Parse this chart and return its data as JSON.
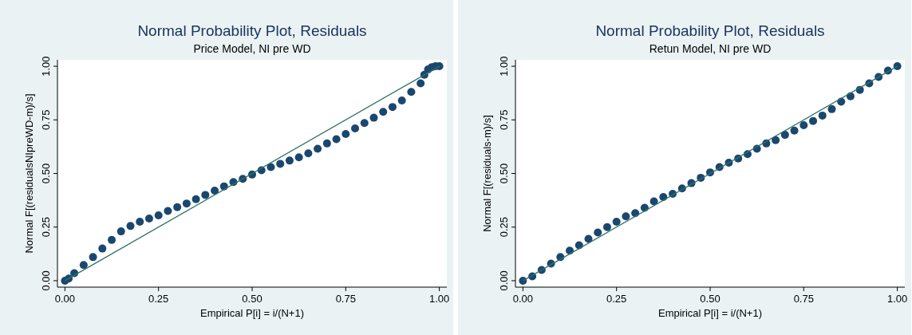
{
  "chart_data": [
    {
      "type": "scatter",
      "title": "Normal Probability Plot, Residuals",
      "subtitle": "Price Model, NI pre WD",
      "xlabel": "Empirical P[i] = i/(N+1)",
      "ylabel": "Normal F[(residualsNIpreWD-m)/s]",
      "xlim": [
        -0.02,
        1.02
      ],
      "ylim": [
        -0.03,
        1.03
      ],
      "xticks": [
        {
          "value": 0,
          "label": "0.00"
        },
        {
          "value": 0.25,
          "label": "0.25"
        },
        {
          "value": 0.5,
          "label": "0.50"
        },
        {
          "value": 0.75,
          "label": "0.75"
        },
        {
          "value": 1,
          "label": "1.00"
        }
      ],
      "yticks": [
        {
          "value": 0,
          "label": "0.00"
        },
        {
          "value": 0.25,
          "label": "0.25"
        },
        {
          "value": 0.5,
          "label": "0.50"
        },
        {
          "value": 0.75,
          "label": "0.75"
        },
        {
          "value": 1,
          "label": "1.00"
        }
      ],
      "grid": false,
      "series": [
        {
          "marker": "circle",
          "color": "#1a476f",
          "x": [
            0,
            0.01,
            0.025,
            0.05,
            0.075,
            0.1,
            0.125,
            0.15,
            0.175,
            0.2,
            0.225,
            0.25,
            0.275,
            0.3,
            0.325,
            0.35,
            0.375,
            0.4,
            0.425,
            0.45,
            0.475,
            0.5,
            0.525,
            0.55,
            0.575,
            0.6,
            0.625,
            0.65,
            0.675,
            0.7,
            0.725,
            0.75,
            0.775,
            0.8,
            0.825,
            0.85,
            0.875,
            0.9,
            0.925,
            0.95,
            0.96,
            0.97,
            0.98,
            0.99,
            1
          ],
          "values": [
            0,
            0.01,
            0.035,
            0.073,
            0.11,
            0.15,
            0.19,
            0.23,
            0.255,
            0.275,
            0.29,
            0.305,
            0.325,
            0.343,
            0.36,
            0.38,
            0.4,
            0.42,
            0.44,
            0.46,
            0.475,
            0.495,
            0.515,
            0.53,
            0.545,
            0.56,
            0.575,
            0.594,
            0.615,
            0.64,
            0.66,
            0.684,
            0.71,
            0.735,
            0.76,
            0.787,
            0.81,
            0.84,
            0.88,
            0.92,
            0.96,
            0.985,
            0.996,
            1,
            1
          ]
        },
        {
          "type": "line",
          "color": "#2d7367",
          "x": [
            0,
            1
          ],
          "values": [
            0,
            1
          ]
        }
      ]
    },
    {
      "type": "scatter",
      "title": "Normal Probability Plot, Residuals",
      "subtitle": "Retun Model, NI pre WD",
      "xlabel": "Empirical P[i] = i/(N+1)",
      "ylabel": "Normal F[(residuals-m)/s]",
      "xlim": [
        -0.02,
        1.02
      ],
      "ylim": [
        -0.03,
        1.03
      ],
      "xticks": [
        {
          "value": 0,
          "label": "0.00"
        },
        {
          "value": 0.25,
          "label": "0.25"
        },
        {
          "value": 0.5,
          "label": "0.50"
        },
        {
          "value": 0.75,
          "label": "0.75"
        },
        {
          "value": 1,
          "label": "1.00"
        }
      ],
      "yticks": [
        {
          "value": 0,
          "label": "0.00"
        },
        {
          "value": 0.25,
          "label": "0.25"
        },
        {
          "value": 0.5,
          "label": "0.50"
        },
        {
          "value": 0.75,
          "label": "0.75"
        },
        {
          "value": 1,
          "label": "1.00"
        }
      ],
      "grid": false,
      "series": [
        {
          "marker": "circle",
          "color": "#1a476f",
          "x": [
            0,
            0.025,
            0.05,
            0.075,
            0.1,
            0.125,
            0.15,
            0.175,
            0.2,
            0.225,
            0.25,
            0.275,
            0.3,
            0.325,
            0.35,
            0.375,
            0.4,
            0.425,
            0.45,
            0.475,
            0.5,
            0.525,
            0.55,
            0.575,
            0.6,
            0.625,
            0.65,
            0.675,
            0.7,
            0.725,
            0.75,
            0.775,
            0.8,
            0.825,
            0.85,
            0.875,
            0.9,
            0.925,
            0.95,
            0.975,
            1
          ],
          "values": [
            0,
            0.02,
            0.05,
            0.08,
            0.11,
            0.14,
            0.165,
            0.195,
            0.225,
            0.25,
            0.275,
            0.3,
            0.315,
            0.34,
            0.37,
            0.39,
            0.405,
            0.43,
            0.455,
            0.48,
            0.505,
            0.53,
            0.55,
            0.57,
            0.59,
            0.615,
            0.64,
            0.655,
            0.68,
            0.7,
            0.725,
            0.745,
            0.77,
            0.8,
            0.835,
            0.86,
            0.89,
            0.92,
            0.95,
            0.98,
            1
          ]
        },
        {
          "type": "line",
          "color": "#2d7367",
          "x": [
            0,
            1
          ],
          "values": [
            0,
            1
          ]
        }
      ]
    }
  ]
}
